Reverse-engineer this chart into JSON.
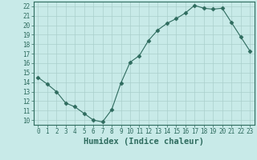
{
  "x": [
    0,
    1,
    2,
    3,
    4,
    5,
    6,
    7,
    8,
    9,
    10,
    11,
    12,
    13,
    14,
    15,
    16,
    17,
    18,
    19,
    20,
    21,
    22,
    23
  ],
  "y": [
    14.5,
    13.8,
    13.0,
    11.8,
    11.4,
    10.7,
    10.0,
    9.8,
    11.1,
    13.9,
    16.1,
    16.8,
    18.4,
    19.5,
    20.2,
    20.7,
    21.3,
    22.1,
    21.8,
    21.7,
    21.8,
    20.3,
    18.8,
    17.3
  ],
  "line_color": "#2e6b5e",
  "marker": "D",
  "marker_size": 2.5,
  "background_color": "#c8eae8",
  "grid_color": "#aacfcc",
  "xlabel": "Humidex (Indice chaleur)",
  "xlim": [
    -0.5,
    23.5
  ],
  "ylim": [
    9.5,
    22.5
  ],
  "xticks": [
    0,
    1,
    2,
    3,
    4,
    5,
    6,
    7,
    8,
    9,
    10,
    11,
    12,
    13,
    14,
    15,
    16,
    17,
    18,
    19,
    20,
    21,
    22,
    23
  ],
  "yticks": [
    10,
    11,
    12,
    13,
    14,
    15,
    16,
    17,
    18,
    19,
    20,
    21,
    22
  ],
  "font_size_ticks": 5.5,
  "font_size_label": 7.5
}
